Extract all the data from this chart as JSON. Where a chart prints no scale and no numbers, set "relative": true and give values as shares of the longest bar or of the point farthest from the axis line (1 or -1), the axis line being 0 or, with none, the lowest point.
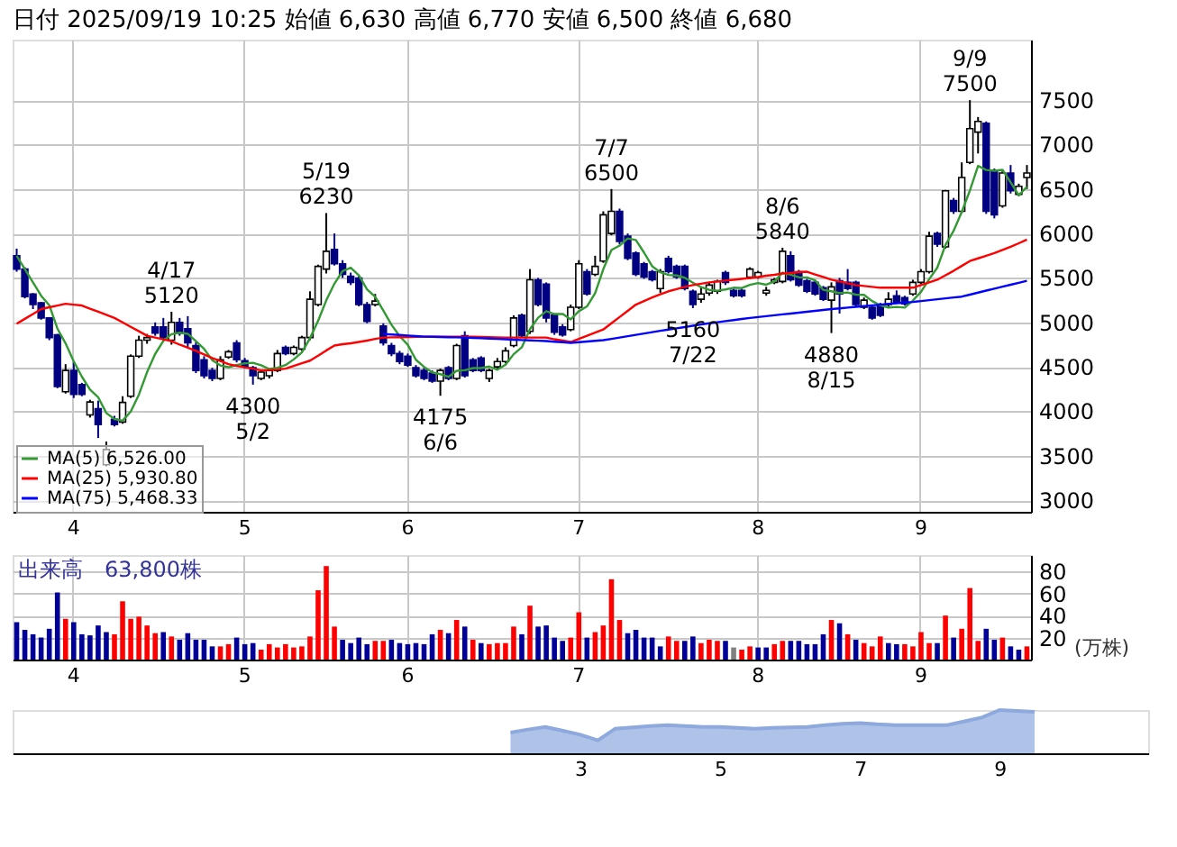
{
  "chart_data": [
    {
      "type": "candlestick",
      "title": "日付 2025/09/19 10:25 始値 6,630 高値 6,770 安値 6,500 終値 6,680",
      "categories": [
        null,
        null,
        null,
        null,
        null,
        null,
        null,
        "4",
        null,
        null,
        null,
        null,
        null,
        null,
        null,
        null,
        null,
        null,
        null,
        null,
        null,
        null,
        null,
        null,
        null,
        null,
        null,
        null,
        "5",
        null,
        null,
        null,
        null,
        null,
        null,
        null,
        null,
        null,
        null,
        null,
        null,
        null,
        null,
        null,
        null,
        null,
        null,
        null,
        "6",
        null,
        null,
        null,
        null,
        null,
        null,
        null,
        null,
        null,
        null,
        null,
        null,
        null,
        null,
        null,
        null,
        null,
        null,
        null,
        null,
        "7",
        null,
        null,
        null,
        null,
        null,
        null,
        null,
        null,
        null,
        null,
        null,
        null,
        null,
        null,
        null,
        null,
        null,
        null,
        null,
        null,
        null,
        "8",
        null,
        null,
        null,
        null,
        null,
        null,
        null,
        null,
        null,
        null,
        null,
        null,
        null,
        null,
        null,
        null,
        null,
        null,
        null,
        "9",
        null,
        null,
        null,
        null,
        null,
        null,
        null,
        null,
        null,
        null,
        null,
        null,
        null
      ],
      "ohlc": [
        [
          5750,
          5830,
          5570,
          5600
        ],
        [
          5600,
          5620,
          5270,
          5290
        ],
        [
          5320,
          5330,
          5150,
          5200
        ],
        [
          5220,
          5230,
          5030,
          5050
        ],
        [
          5050,
          5060,
          4800,
          4830
        ],
        [
          4860,
          4870,
          4260,
          4280
        ],
        [
          4220,
          4530,
          4200,
          4460
        ],
        [
          4460,
          4560,
          4150,
          4190
        ],
        [
          4300,
          4320,
          4170,
          4190
        ],
        [
          3960,
          4130,
          3930,
          4105
        ],
        [
          4030,
          4120,
          3700,
          3850
        ],
        [
          3400,
          3660,
          3380,
          3570
        ],
        [
          3910,
          3950,
          3830,
          3850
        ],
        [
          3880,
          4170,
          3860,
          4100
        ],
        [
          4170,
          4640,
          4150,
          4620
        ],
        [
          4620,
          4850,
          4600,
          4800
        ],
        [
          4800,
          4870,
          4760,
          4830
        ],
        [
          4950,
          5000,
          4850,
          4880
        ],
        [
          4950,
          5050,
          4800,
          4830
        ],
        [
          4800,
          5120,
          4750,
          5000
        ],
        [
          5000,
          5050,
          4850,
          4880
        ],
        [
          4930,
          5070,
          4720,
          4770
        ],
        [
          4740,
          4780,
          4430,
          4460
        ],
        [
          4580,
          4620,
          4370,
          4400
        ],
        [
          4460,
          4490,
          4340,
          4370
        ],
        [
          4370,
          4620,
          4350,
          4580
        ],
        [
          4610,
          4690,
          4590,
          4670
        ],
        [
          4770,
          4800,
          4550,
          4580
        ],
        [
          4570,
          4600,
          4480,
          4500
        ],
        [
          4490,
          4510,
          4300,
          4400
        ],
        [
          4370,
          4470,
          4350,
          4440
        ],
        [
          4400,
          4480,
          4370,
          4460
        ],
        [
          4460,
          4690,
          4440,
          4650
        ],
        [
          4720,
          4740,
          4630,
          4650
        ],
        [
          4650,
          4740,
          4630,
          4720
        ],
        [
          4700,
          4850,
          4680,
          4830
        ],
        [
          4830,
          5350,
          4800,
          5260
        ],
        [
          5200,
          5650,
          5180,
          5630
        ],
        [
          5600,
          6230,
          5550,
          5800
        ],
        [
          5820,
          6000,
          5640,
          5660
        ],
        [
          5660,
          5700,
          5500,
          5540
        ],
        [
          5520,
          5560,
          5420,
          5450
        ],
        [
          5500,
          5520,
          5180,
          5200
        ],
        [
          5200,
          5230,
          4990,
          5010
        ],
        [
          5200,
          5320,
          5180,
          5240
        ],
        [
          4960,
          4990,
          4740,
          4770
        ],
        [
          4740,
          4770,
          4620,
          4650
        ],
        [
          4650,
          4680,
          4530,
          4560
        ],
        [
          4620,
          4650,
          4500,
          4520
        ],
        [
          4490,
          4520,
          4380,
          4400
        ],
        [
          4460,
          4490,
          4350,
          4370
        ],
        [
          4430,
          4460,
          4320,
          4340
        ],
        [
          4340,
          4480,
          4175,
          4460
        ],
        [
          4490,
          4510,
          4350,
          4370
        ],
        [
          4370,
          4760,
          4350,
          4740
        ],
        [
          4850,
          4900,
          4380,
          4400
        ],
        [
          4580,
          4600,
          4440,
          4460
        ],
        [
          4600,
          4620,
          4440,
          4460
        ],
        [
          4370,
          4480,
          4330,
          4460
        ],
        [
          4500,
          4600,
          4480,
          4560
        ],
        [
          4560,
          4720,
          4540,
          4680
        ],
        [
          4740,
          5080,
          4720,
          5050
        ],
        [
          5080,
          5100,
          4830,
          4850
        ],
        [
          4900,
          5600,
          4870,
          5480
        ],
        [
          5480,
          5500,
          5180,
          5200
        ],
        [
          5430,
          5450,
          5000,
          5050
        ],
        [
          5080,
          5100,
          4860,
          4890
        ],
        [
          4950,
          4980,
          4840,
          4860
        ],
        [
          4920,
          5200,
          4900,
          5170
        ],
        [
          5170,
          5700,
          5150,
          5660
        ],
        [
          5570,
          5600,
          5300,
          5320
        ],
        [
          5540,
          5750,
          5520,
          5630
        ],
        [
          5690,
          6250,
          5670,
          6210
        ],
        [
          6000,
          6500,
          5980,
          6250
        ],
        [
          6250,
          6280,
          5880,
          5910
        ],
        [
          5970,
          6000,
          5700,
          5720
        ],
        [
          5780,
          5800,
          5520,
          5540
        ],
        [
          5660,
          5680,
          5490,
          5510
        ],
        [
          5570,
          5590,
          5460,
          5480
        ],
        [
          5380,
          5600,
          5330,
          5570
        ],
        [
          5720,
          5750,
          5550,
          5570
        ],
        [
          5630,
          5650,
          5490,
          5510
        ],
        [
          5630,
          5650,
          5360,
          5380
        ],
        [
          5350,
          5370,
          5160,
          5200
        ],
        [
          5260,
          5400,
          5220,
          5320
        ],
        [
          5330,
          5450,
          5300,
          5420
        ],
        [
          5350,
          5480,
          5320,
          5460
        ],
        [
          5560,
          5580,
          5420,
          5450
        ],
        [
          5360,
          5380,
          5280,
          5300
        ],
        [
          5360,
          5380,
          5280,
          5300
        ],
        [
          5510,
          5620,
          5490,
          5600
        ],
        [
          5510,
          5580,
          5490,
          5560
        ],
        [
          5330,
          5400,
          5300,
          5360
        ],
        [
          5450,
          5500,
          5430,
          5480
        ],
        [
          5460,
          5840,
          5440,
          5800
        ],
        [
          5750,
          5800,
          5460,
          5480
        ],
        [
          5570,
          5590,
          5400,
          5420
        ],
        [
          5470,
          5490,
          5330,
          5350
        ],
        [
          5450,
          5470,
          5300,
          5320
        ],
        [
          5390,
          5410,
          5240,
          5260
        ],
        [
          5250,
          5450,
          4880,
          5400
        ],
        [
          5470,
          5500,
          5100,
          5320
        ],
        [
          5450,
          5600,
          5360,
          5380
        ],
        [
          5450,
          5470,
          5180,
          5200
        ],
        [
          5170,
          5280,
          5150,
          5250
        ],
        [
          5170,
          5190,
          5030,
          5050
        ],
        [
          5200,
          5220,
          5060,
          5080
        ],
        [
          5200,
          5340,
          5180,
          5260
        ],
        [
          5300,
          5360,
          5210,
          5230
        ],
        [
          5280,
          5300,
          5190,
          5210
        ],
        [
          5320,
          5480,
          5300,
          5450
        ],
        [
          5450,
          5600,
          5430,
          5570
        ],
        [
          5570,
          6020,
          5550,
          5970
        ],
        [
          6000,
          6020,
          5850,
          5880
        ],
        [
          5850,
          6490,
          5830,
          6480
        ],
        [
          6370,
          6400,
          6220,
          6250
        ],
        [
          6250,
          6800,
          6230,
          6630
        ],
        [
          6800,
          7500,
          6780,
          7180
        ],
        [
          7140,
          7310,
          6900,
          7260
        ],
        [
          7240,
          7260,
          6220,
          6250
        ],
        [
          6710,
          6730,
          6170,
          6210
        ],
        [
          6310,
          6700,
          6290,
          6680
        ],
        [
          6680,
          6770,
          6450,
          6480
        ],
        [
          6440,
          6560,
          6420,
          6530
        ],
        [
          6630,
          6770,
          6500,
          6680
        ]
      ],
      "series": [
        {
          "name": "MA(5) 6,526.00",
          "type": "line",
          "color": "#339933",
          "values": [
            5750,
            5600,
            5450,
            5300,
            5194,
            4930,
            4764,
            4562,
            4390,
            4245,
            4159,
            3981,
            3913,
            3895,
            3998,
            4188,
            4440,
            4646,
            4792,
            4868,
            4884,
            4872,
            4788,
            4702,
            4576,
            4516,
            4496,
            4520,
            4540,
            4546,
            4518,
            4476,
            4490,
            4520,
            4584,
            4662,
            4822,
            5018,
            5248,
            5436,
            5578,
            5616,
            5530,
            5372,
            5288,
            5134,
            4974,
            4846,
            4748,
            4580,
            4500,
            4438,
            4418,
            4388,
            4456,
            4462,
            4486,
            4486,
            4504,
            4468,
            4524,
            4642,
            4720,
            4924,
            5052,
            5126,
            5094,
            5096,
            5034,
            5126,
            5180,
            5328,
            5598,
            5814,
            5864,
            5944,
            5926,
            5786,
            5632,
            5564,
            5534,
            5528,
            5502,
            5446,
            5396,
            5366,
            5356,
            5370,
            5390,
            5386,
            5422,
            5442,
            5424,
            5460,
            5560,
            5536,
            5508,
            5506,
            5474,
            5366,
            5350,
            5330,
            5336,
            5312,
            5310,
            5240,
            5192,
            5168,
            5174,
            5166,
            5246,
            5344,
            5486,
            5616,
            5870,
            6030,
            6242,
            6484,
            6760,
            6714,
            6706,
            6716,
            6576,
            6430,
            6526
          ]
        },
        {
          "name": "MA(25) 5,930.80",
          "type": "line",
          "color": "#ff0000",
          "values": [
            4985,
            5040,
            5095,
            5150,
            5170,
            5190,
            5210,
            5200,
            5190,
            5155,
            5120,
            5085,
            5050,
            5000,
            4950,
            4900,
            4850,
            4830,
            4810,
            4790,
            4750,
            4715,
            4680,
            4640,
            4600,
            4565,
            4530,
            4510,
            4495,
            4480,
            4460,
            4465,
            4470,
            4480,
            4510,
            4540,
            4570,
            4625,
            4685,
            4740,
            4755,
            4765,
            4780,
            4795,
            4815,
            4830,
            4832,
            4834,
            4836,
            4838,
            4840,
            4840,
            4840,
            4840,
            4840,
            4840,
            4838,
            4836,
            4834,
            4832,
            4830,
            4830,
            4830,
            4830,
            4830,
            4830,
            4810,
            4795,
            4780,
            4815,
            4850,
            4885,
            4920,
            4990,
            5060,
            5130,
            5200,
            5240,
            5280,
            5315,
            5350,
            5375,
            5400,
            5420,
            5435,
            5450,
            5460,
            5470,
            5480,
            5490,
            5500,
            5510,
            5525,
            5535,
            5550,
            5555,
            5565,
            5570,
            5540,
            5510,
            5480,
            5460,
            5440,
            5420,
            5410,
            5400,
            5390,
            5390,
            5390,
            5390,
            5390,
            5420,
            5450,
            5480,
            5530,
            5580,
            5635,
            5690,
            5720,
            5750,
            5780,
            5815,
            5850,
            5890,
            5930.8
          ]
        },
        {
          "name": "MA(75) 5,468.33",
          "type": "line",
          "color": "#0000ff",
          "values": [
            null,
            null,
            null,
            null,
            null,
            null,
            null,
            null,
            null,
            null,
            null,
            null,
            null,
            null,
            null,
            null,
            null,
            null,
            null,
            null,
            null,
            null,
            null,
            null,
            null,
            null,
            null,
            null,
            null,
            null,
            null,
            null,
            null,
            null,
            null,
            null,
            null,
            null,
            null,
            null,
            null,
            null,
            null,
            null,
            null,
            4870,
            4864,
            4858,
            4852,
            4846,
            4840,
            4838,
            4836,
            4834,
            4832,
            4830,
            4826,
            4822,
            4818,
            4814,
            4810,
            4806,
            4802,
            4798,
            4794,
            4790,
            4783,
            4777,
            4770,
            4778,
            4785,
            4793,
            4800,
            4815,
            4830,
            4845,
            4860,
            4875,
            4890,
            4905,
            4920,
            4934,
            4948,
            4962,
            4976,
            4990,
            5002,
            5014,
            5026,
            5038,
            5050,
            5060,
            5070,
            5080,
            5090,
            5100,
            5110,
            5120,
            5130,
            5140,
            5150,
            5158,
            5167,
            5175,
            5183,
            5192,
            5200,
            5208,
            5215,
            5223,
            5230,
            5240,
            5250,
            5260,
            5270,
            5280,
            5290,
            5312,
            5335,
            5358,
            5380,
            5402,
            5424,
            5446,
            5468.33
          ]
        }
      ],
      "annotations": [
        {
          "text": "4/17\n5120",
          "y": 5120
        },
        {
          "text": "4300\n5/2",
          "y": 4300
        },
        {
          "text": "5/19\n6230",
          "y": 6230
        },
        {
          "text": "4175\n6/6",
          "y": 4175
        },
        {
          "text": "7/7\n6500",
          "y": 6500
        },
        {
          "text": "5160\n7/22",
          "y": 5160
        },
        {
          "text": "8/6\n5840",
          "y": 5840
        },
        {
          "text": "4880\n8/15",
          "y": 4880
        },
        {
          "text": "9/9\n7500",
          "y": 7500
        }
      ],
      "ylim": [
        2870,
        8180
      ],
      "yticks": [
        3000,
        3500,
        4000,
        4500,
        5000,
        5500,
        6000,
        6500,
        7000,
        7500
      ],
      "grid": true,
      "legend": "bottom left"
    },
    {
      "type": "bar",
      "categories": [
        null,
        null,
        null,
        null,
        null,
        null,
        null,
        "4",
        null,
        null,
        null,
        null,
        null,
        null,
        null,
        null,
        null,
        null,
        null,
        null,
        null,
        null,
        null,
        null,
        null,
        null,
        null,
        null,
        "5",
        null,
        null,
        null,
        null,
        null,
        null,
        null,
        null,
        null,
        null,
        null,
        null,
        null,
        null,
        null,
        null,
        null,
        null,
        null,
        "6",
        null,
        null,
        null,
        null,
        null,
        null,
        null,
        null,
        null,
        null,
        null,
        null,
        null,
        null,
        null,
        null,
        null,
        null,
        null,
        null,
        "7",
        null,
        null,
        null,
        null,
        null,
        null,
        null,
        null,
        null,
        null,
        null,
        null,
        null,
        null,
        null,
        null,
        null,
        null,
        null,
        null,
        null,
        "8",
        null,
        null,
        null,
        null,
        null,
        null,
        null,
        null,
        null,
        null,
        null,
        null,
        null,
        null,
        null,
        null,
        null,
        null,
        null,
        "9",
        null,
        null,
        null,
        null,
        null,
        null,
        null,
        null,
        null,
        null,
        null,
        null,
        null
      ],
      "values": [
        34,
        27,
        23,
        20,
        28,
        61,
        37,
        34,
        23,
        22,
        31,
        25,
        23,
        53,
        37,
        39,
        31,
        24,
        25,
        21,
        18,
        24,
        18,
        18,
        12,
        12,
        14,
        20,
        14,
        15,
        9,
        14,
        11,
        14,
        11,
        12,
        21,
        63,
        85,
        30,
        18,
        15,
        20,
        14,
        17,
        17,
        18,
        15,
        14,
        15,
        14,
        23,
        27,
        24,
        36,
        30,
        18,
        15,
        14,
        15,
        15,
        30,
        23,
        49,
        30,
        31,
        20,
        17,
        20,
        43,
        20,
        25,
        31,
        73,
        36,
        24,
        27,
        20,
        20,
        12,
        21,
        17,
        17,
        21,
        15,
        18,
        17,
        17,
        11,
        9,
        12,
        11,
        11,
        14,
        17,
        17,
        17,
        14,
        14,
        23,
        36,
        33,
        23,
        18,
        15,
        12,
        21,
        15,
        14,
        14,
        12,
        25,
        15,
        15,
        40,
        20,
        28,
        65,
        17,
        28,
        18,
        20,
        12,
        9,
        12
      ],
      "colors": [
        "#000099",
        "#000099",
        "#000099",
        "#000099",
        "#000099",
        "#000099",
        "#ff0000",
        "#000099",
        "#000099",
        "#000099",
        "#000099",
        "#000099",
        "#ff0000",
        "#ff0000",
        "#ff0000",
        "#ff0000",
        "#ff0000",
        "#ff0000",
        "#000099",
        "#ff0000",
        "#000099",
        "#000099",
        "#000099",
        "#000099",
        "#000099",
        "#ff0000",
        "#ff0000",
        "#000099",
        "#000099",
        "#000099",
        "#ff0000",
        "#ff0000",
        "#ff0000",
        "#ff0000",
        "#ff0000",
        "#ff0000",
        "#ff0000",
        "#ff0000",
        "#ff0000",
        "#ff0000",
        "#000099",
        "#000099",
        "#000099",
        "#000099",
        "#ff0000",
        "#ff0000",
        "#000099",
        "#000099",
        "#000099",
        "#000099",
        "#000099",
        "#000099",
        "#ff0000",
        "#000099",
        "#ff0000",
        "#000099",
        "#ff0000",
        "#000099",
        "#ff0000",
        "#ff0000",
        "#ff0000",
        "#ff0000",
        "#000099",
        "#ff0000",
        "#000099",
        "#000099",
        "#000099",
        "#000099",
        "#ff0000",
        "#ff0000",
        "#000099",
        "#ff0000",
        "#ff0000",
        "#ff0000",
        "#ff0000",
        "#000099",
        "#000099",
        "#000099",
        "#000099",
        "#000099",
        "#ff0000",
        "#ff0000",
        "#000099",
        "#000099",
        "#ff0000",
        "#ff0000",
        "#ff0000",
        "#000099",
        "#808080",
        "#ff0000",
        "#ff0000",
        "#000099",
        "#000099",
        "#ff0000",
        "#ff0000",
        "#000099",
        "#000099",
        "#000099",
        "#000099",
        "#000099",
        "#ff0000",
        "#000099",
        "#ff0000",
        "#000099",
        "#ff0000",
        "#ff0000",
        "#ff0000",
        "#000099",
        "#000099",
        "#ff0000",
        "#ff0000",
        "#ff0000",
        "#ff0000",
        "#000099",
        "#ff0000",
        "#000099",
        "#ff0000",
        "#ff0000",
        "#ff0000",
        "#000099",
        "#000099",
        "#ff0000",
        "#000099",
        "#000099",
        "#ff0000"
      ],
      "annotations": [
        "出来高　63,800株"
      ],
      "ylabel": "(万株)",
      "ylim": [
        0,
        95
      ],
      "yticks": [
        20,
        40,
        60,
        80
      ],
      "grid": true
    },
    {
      "type": "area",
      "relative": true,
      "color": "#8da9de",
      "categories": [
        null,
        null,
        null,
        null,
        null,
        null,
        null,
        null,
        null,
        null,
        null,
        null,
        null,
        null,
        null,
        null,
        null,
        null,
        null,
        null,
        null,
        null,
        null,
        null,
        null,
        null,
        null,
        null,
        null,
        null,
        null,
        null,
        "3",
        null,
        null,
        null,
        null,
        null,
        null,
        null,
        "5",
        null,
        null,
        null,
        null,
        null,
        null,
        null,
        "7",
        null,
        null,
        null,
        null,
        null,
        null,
        null,
        "9",
        null,
        null,
        null,
        null,
        null,
        null,
        null,
        null
      ],
      "values": [
        null,
        null,
        null,
        null,
        null,
        null,
        null,
        null,
        null,
        null,
        null,
        null,
        null,
        null,
        null,
        null,
        null,
        null,
        null,
        null,
        null,
        null,
        null,
        null,
        null,
        null,
        null,
        null,
        0.48,
        0.55,
        0.61,
        0.52,
        0.43,
        0.3,
        0.57,
        0.6,
        0.63,
        0.65,
        0.63,
        0.61,
        0.61,
        0.59,
        0.57,
        0.59,
        0.6,
        0.61,
        0.65,
        0.68,
        0.7,
        0.67,
        0.65,
        0.65,
        0.65,
        0.65,
        0.74,
        0.83,
        1.0,
        0.98,
        0.96,
        null,
        null,
        null,
        null,
        null,
        null
      ]
    }
  ]
}
